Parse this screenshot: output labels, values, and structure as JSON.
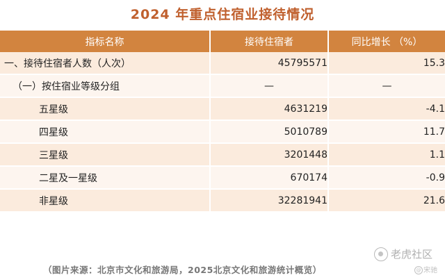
{
  "title": "2024 年重点住宿业接待情况",
  "table": {
    "headers": [
      "指标名称",
      "接待住宿者",
      "同比增长 （%）"
    ],
    "rows": [
      {
        "name": "一、接待住宿者人数（人次）",
        "guests": "45795571",
        "growth": "15.3"
      },
      {
        "name": "（一）按住宿业等级分组",
        "guests": "—",
        "growth": "—"
      },
      {
        "name": "五星级",
        "guests": "4631219",
        "growth": "-4.1"
      },
      {
        "name": "四星级",
        "guests": "5010789",
        "growth": "11.7"
      },
      {
        "name": "三星级",
        "guests": "3201448",
        "growth": "1.1"
      },
      {
        "name": "二星及一星级",
        "guests": "670174",
        "growth": "-0.9"
      },
      {
        "name": "非星级",
        "guests": "32281941",
        "growth": "21.6"
      }
    ]
  },
  "source": "（图片来源：北京市文化和旅游局，2025北京文化和旅游统计概览）",
  "watermark": {
    "text": "老虎社区",
    "icon": "tiger-paw-icon"
  },
  "author": "宋驰"
}
